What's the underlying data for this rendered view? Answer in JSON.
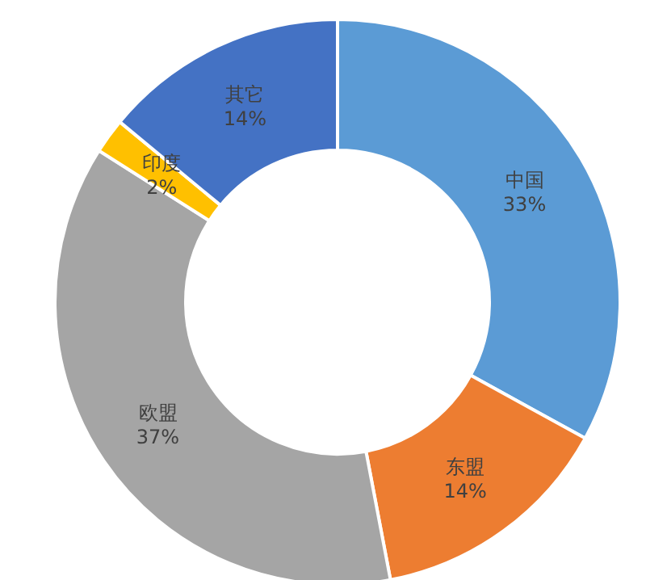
{
  "chart_data": {
    "type": "donut",
    "categories": [
      "中国",
      "东盟",
      "欧盟",
      "印度",
      "其它"
    ],
    "values": [
      33,
      14,
      37,
      2,
      14
    ],
    "value_labels": [
      "33%",
      "14%",
      "37%",
      "2%",
      "14%"
    ],
    "colors": [
      "#5b9bd5",
      "#ed7d31",
      "#a5a5a5",
      "#ffc000",
      "#4472c4"
    ],
    "legend": false
  }
}
